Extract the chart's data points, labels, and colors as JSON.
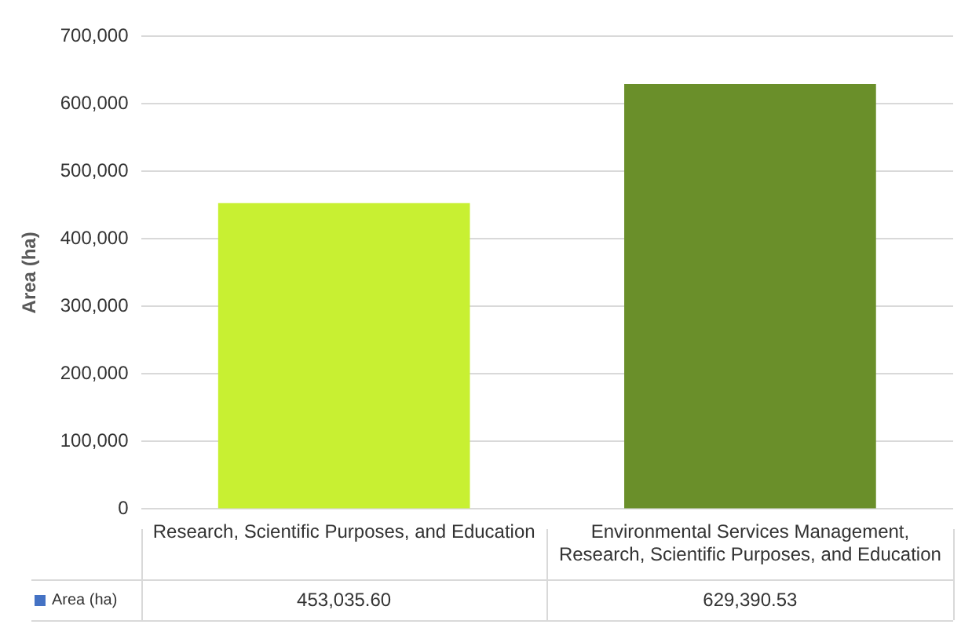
{
  "chart_data": {
    "type": "bar",
    "ylabel": "Area (ha)",
    "categories": [
      "Research, Scientific Purposes, and Education",
      "Environmental Services Management, Research, Scientific Purposes, and Education"
    ],
    "series": [
      {
        "name": "Area (ha)",
        "color": "#4472c4",
        "colors": [
          "#c8f032",
          "#6a8f2a"
        ],
        "values": [
          453035.6,
          629390.53
        ],
        "value_labels": [
          "453,035.60",
          "629,390.53"
        ]
      }
    ],
    "ylim": [
      0,
      700000
    ],
    "yticks": [
      0,
      {
        "value": 100000,
        "label": "100,000"
      },
      {
        "value": 200000,
        "label": "200,000"
      },
      {
        "value": 300000,
        "label": "300,000"
      },
      {
        "value": 400000,
        "label": "400,000"
      },
      {
        "value": 500000,
        "label": "500,000"
      },
      {
        "value": 600000,
        "label": "600,000"
      },
      {
        "value": 700000,
        "label": "700,000"
      }
    ],
    "grid": "y",
    "legend": "bottom",
    "data_labels": true
  }
}
